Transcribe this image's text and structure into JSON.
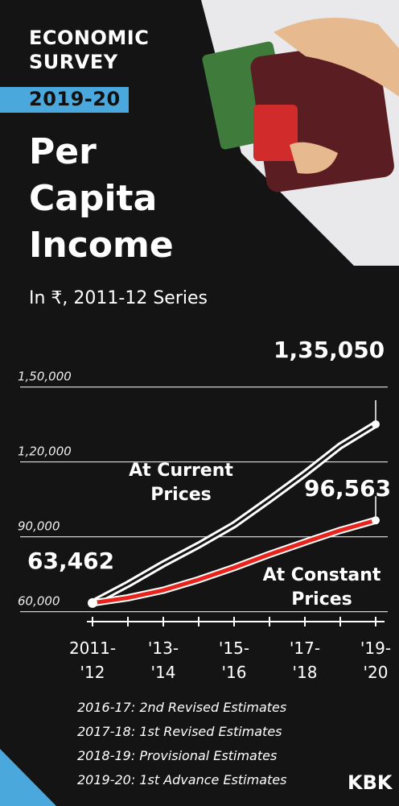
{
  "chart_data": {
    "type": "line",
    "header": "ECONOMIC SURVEY",
    "badge": "2019-20",
    "title": "Per Capita Income",
    "subtitle": "In ₹, 2011-12 Series",
    "categories": [
      "2011-'12",
      null,
      "'13-'14",
      null,
      "'15-'16",
      null,
      "'17-'18",
      null,
      "'19-'20"
    ],
    "series": [
      {
        "name": "At Current Prices",
        "color": "#ffffff",
        "values": [
          63462,
          70983,
          79118,
          86647,
          94797,
          104880,
          115293,
          126406,
          135050
        ],
        "value_labels": [
          "63,462",
          null,
          null,
          null,
          null,
          null,
          null,
          null,
          "1,35,050"
        ]
      },
      {
        "name": "At Constant Prices",
        "color": "#e8231b",
        "values": [
          63462,
          65538,
          68572,
          72805,
          77659,
          82931,
          87828,
          92565,
          96563
        ],
        "value_labels": [
          null,
          null,
          null,
          null,
          null,
          null,
          null,
          null,
          "96,563"
        ]
      }
    ],
    "ylim": [
      56000,
      152000
    ],
    "yticks": [
      {
        "value": 60000,
        "label": "60,000"
      },
      {
        "value": 90000,
        "label": "90,000"
      },
      {
        "value": 120000,
        "label": "1,20,000"
      },
      {
        "value": 150000,
        "label": "1,50,000"
      }
    ],
    "grid": true,
    "notes": [
      "2016-17: 2nd Revised Estimates",
      "2017-18: 1st Revised Estimates",
      "2018-19: Provisional Estimates",
      "2019-20: 1st Advance Estimates"
    ],
    "source": "KBK"
  }
}
